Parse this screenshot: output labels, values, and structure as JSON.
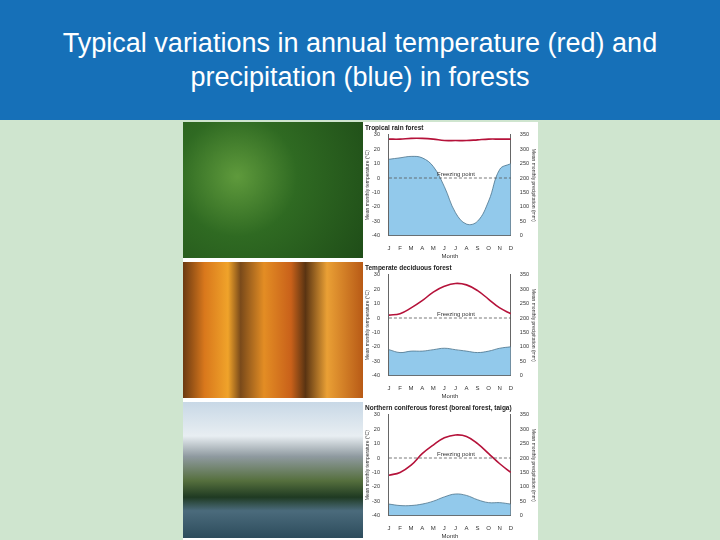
{
  "title": "Typical variations in annual temperature (red) and precipitation (blue) in forests",
  "chart_data": [
    {
      "type": "line",
      "title": "Tropical rain forest",
      "categories": [
        "J",
        "F",
        "M",
        "A",
        "M",
        "J",
        "J",
        "A",
        "S",
        "O",
        "N",
        "D"
      ],
      "x_label": "Month",
      "y_label": "Mean monthly temperature (°C)",
      "y2_label": "Mean monthly precipitation (mm)",
      "ylim": [
        -40,
        30
      ],
      "yticks": [
        -40,
        -30,
        -20,
        -10,
        0,
        10,
        20,
        30
      ],
      "y2lim": [
        0,
        350
      ],
      "y2ticks": [
        0,
        50,
        100,
        150,
        200,
        250,
        300,
        350
      ],
      "grid": false,
      "annotations": [
        {
          "text": "Freezing point",
          "y": 0
        }
      ],
      "series": [
        {
          "type": "line",
          "color": "#b5123a",
          "values": [
            27,
            27,
            27.5,
            27.5,
            27,
            26,
            26,
            26,
            26.5,
            27,
            27,
            27
          ]
        },
        {
          "type": "area",
          "color": "#7fbfe8",
          "axis": "y2",
          "values": [
            265,
            270,
            275,
            270,
            240,
            170,
            80,
            40,
            50,
            120,
            230,
            250
          ]
        }
      ]
    },
    {
      "type": "line",
      "title": "Temperate deciduous forest",
      "categories": [
        "J",
        "F",
        "M",
        "A",
        "M",
        "J",
        "J",
        "A",
        "S",
        "O",
        "N",
        "D"
      ],
      "x_label": "Month",
      "y_label": "Mean monthly temperature (°C)",
      "y2_label": "Mean monthly precipitation (mm)",
      "ylim": [
        -40,
        30
      ],
      "yticks": [
        -40,
        -30,
        -20,
        -10,
        0,
        10,
        20,
        30
      ],
      "y2lim": [
        0,
        350
      ],
      "y2ticks": [
        0,
        50,
        100,
        150,
        200,
        250,
        300,
        350
      ],
      "grid": false,
      "annotations": [
        {
          "text": "Freezing point",
          "y": 0
        }
      ],
      "series": [
        {
          "type": "line",
          "color": "#b5123a",
          "values": [
            2,
            3,
            7,
            12,
            18,
            22,
            24,
            23,
            19,
            13,
            7,
            3
          ]
        },
        {
          "type": "area",
          "color": "#7fbfe8",
          "axis": "y2",
          "values": [
            90,
            80,
            85,
            85,
            90,
            95,
            90,
            85,
            80,
            85,
            95,
            100
          ]
        }
      ]
    },
    {
      "type": "line",
      "title": "Northern coniferous forest (boreal forest, taiga)",
      "categories": [
        "J",
        "F",
        "M",
        "A",
        "M",
        "J",
        "J",
        "A",
        "S",
        "O",
        "N",
        "D"
      ],
      "x_label": "Month",
      "y_label": "Mean monthly temperature (°C)",
      "y2_label": "Mean monthly precipitation (mm)",
      "ylim": [
        -40,
        30
      ],
      "yticks": [
        -40,
        -30,
        -20,
        -10,
        0,
        10,
        20,
        30
      ],
      "y2lim": [
        0,
        350
      ],
      "y2ticks": [
        0,
        50,
        100,
        150,
        200,
        250,
        300,
        350
      ],
      "grid": false,
      "annotations": [
        {
          "text": "Freezing point",
          "y": 0
        }
      ],
      "series": [
        {
          "type": "line",
          "color": "#b5123a",
          "values": [
            -12,
            -10,
            -5,
            3,
            9,
            14,
            16,
            15,
            10,
            3,
            -4,
            -10
          ]
        },
        {
          "type": "area",
          "color": "#7fbfe8",
          "axis": "y2",
          "values": [
            40,
            35,
            35,
            40,
            50,
            65,
            75,
            70,
            55,
            45,
            45,
            40
          ]
        }
      ]
    }
  ]
}
